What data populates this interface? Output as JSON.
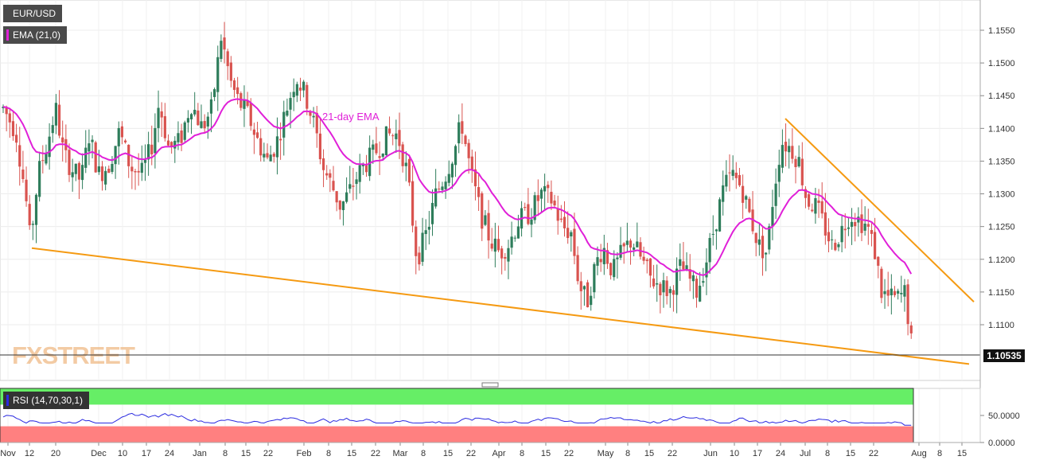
{
  "symbol": "EUR/USD",
  "ema_label": "EMA (21,0)",
  "rsi_label": "RSI (14,70,30,1)",
  "last_price": "1.10535",
  "annotation": "21-day EMA",
  "watermark": "FXSTREET",
  "colors": {
    "up": "#2e7d5b",
    "down": "#d9534f",
    "ema": "#e020d8",
    "trendline": "#f59a12",
    "rsi": "#2a2ae0",
    "overbought_band": "#66ee66",
    "oversold_band": "#ff8080"
  },
  "chart_data": {
    "type": "candlestick",
    "price_axis": {
      "ticks": [
        "1.1550",
        "1.1500",
        "1.1450",
        "1.1400",
        "1.1350",
        "1.1300",
        "1.1250",
        "1.1200",
        "1.1150",
        "1.1100"
      ],
      "range": [
        1.1025,
        1.159
      ]
    },
    "time_axis": {
      "labels": [
        "Nov",
        "12",
        "20",
        "Dec",
        "10",
        "17",
        "24",
        "Jan",
        "8",
        "15",
        "22",
        "Feb",
        "8",
        "15",
        "22",
        "Mar",
        "8",
        "15",
        "22",
        "Apr",
        "8",
        "15",
        "22",
        "May",
        "8",
        "15",
        "22",
        "Jun",
        "10",
        "17",
        "24",
        "Jul",
        "8",
        "15",
        "22",
        "Aug",
        "8",
        "15"
      ]
    },
    "rsi_axis": {
      "ticks": [
        "50.0000",
        "0.0000"
      ],
      "range": [
        0,
        100
      ],
      "levels": [
        70,
        30
      ]
    },
    "series": [
      {
        "name": "EMA (21,0)",
        "type": "line"
      },
      {
        "name": "RSI (14,70,30,1)",
        "type": "line"
      }
    ],
    "trendlines": [
      {
        "from": [
          "Nov 12",
          1.1217
        ],
        "to": [
          "Aug 22",
          1.104
        ]
      },
      {
        "from": [
          "Jun 24",
          1.1415
        ],
        "to": [
          "Aug 22",
          1.1135
        ]
      }
    ]
  }
}
